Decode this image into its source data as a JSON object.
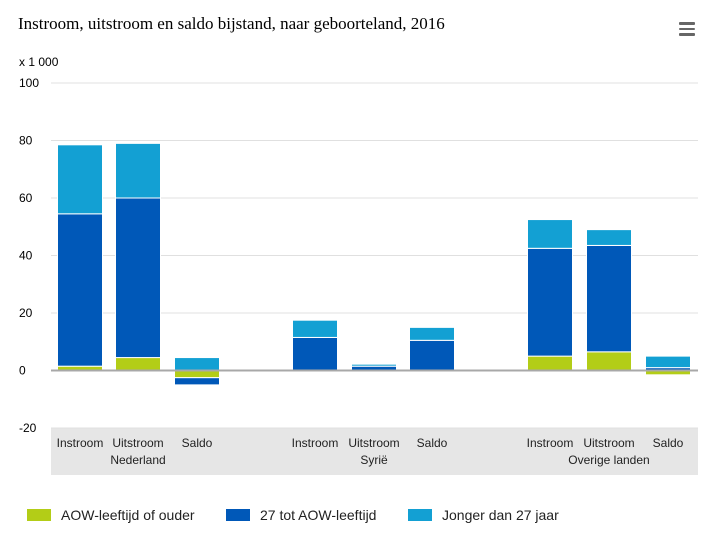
{
  "title": "Instroom, uitstroom en saldo bijstand, naar geboorteland, 2016",
  "menu_icon": "hamburger-menu-icon",
  "unit_label": "x 1 000",
  "chart_data": {
    "type": "bar",
    "stacked": true,
    "title": "Instroom, uitstroom en saldo bijstand, naar geboorteland, 2016",
    "ylabel": "x 1 000",
    "ylim": [
      -20,
      100
    ],
    "yticks": [
      100,
      80,
      60,
      40,
      20,
      0,
      -20
    ],
    "grid": true,
    "legend_position": "bottom",
    "groups": [
      {
        "label": "Nederland",
        "categories": [
          "Instroom",
          "Uitstroom",
          "Saldo"
        ]
      },
      {
        "label": "Syrië",
        "categories": [
          "Instroom",
          "Uitstroom",
          "Saldo"
        ]
      },
      {
        "label": "Overige landen",
        "categories": [
          "Instroom",
          "Uitstroom",
          "Saldo"
        ]
      }
    ],
    "categories": [
      "Instroom",
      "Uitstroom",
      "Saldo",
      "Instroom",
      "Uitstroom",
      "Saldo",
      "Instroom",
      "Uitstroom",
      "Saldo"
    ],
    "tick_labels": [
      [
        "Instroom"
      ],
      [
        "Uitstroom",
        "Nederland"
      ],
      [
        "Saldo"
      ],
      [
        "Instroom"
      ],
      [
        "Uitstroom",
        "Syrië"
      ],
      [
        "Saldo"
      ],
      [
        "Instroom"
      ],
      [
        "Uitstroom",
        "Overige landen"
      ],
      [
        "Saldo"
      ]
    ],
    "series": [
      {
        "name": "AOW-leeftijd of ouder",
        "color": "#b3cd17",
        "values": [
          1.5,
          4.5,
          -2.5,
          0,
          0,
          0,
          5,
          6.5,
          -1.5
        ]
      },
      {
        "name": "27 tot AOW-leeftijd",
        "color": "#0058b8",
        "values": [
          53,
          55.5,
          -2.5,
          11.5,
          1.5,
          10.5,
          37.5,
          37,
          1.0
        ]
      },
      {
        "name": "Jonger dan 27 jaar",
        "color": "#13a0d3",
        "values": [
          24,
          19,
          4.5,
          6,
          0.7,
          4.5,
          10,
          5.5,
          4.0
        ]
      }
    ]
  }
}
